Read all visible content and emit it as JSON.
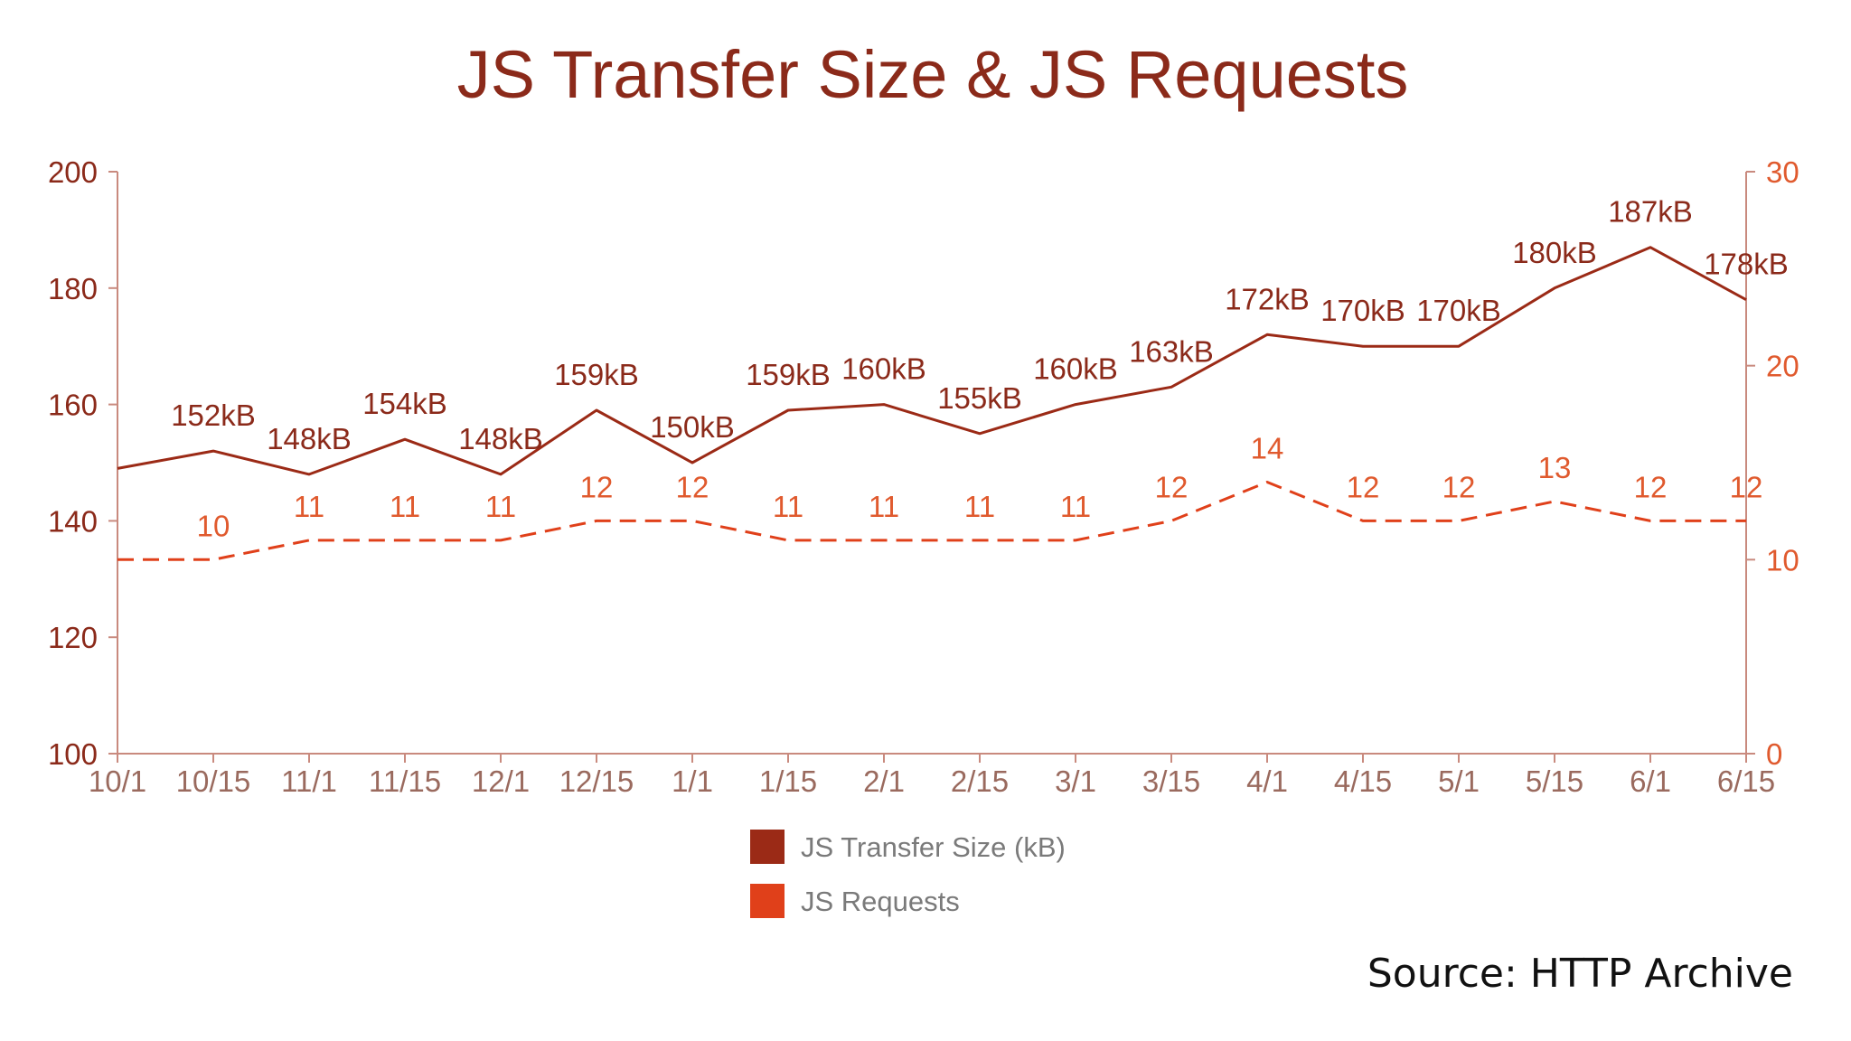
{
  "chart_data": {
    "type": "line",
    "title": "JS Transfer Size & JS Requests",
    "categories": [
      "10/1",
      "10/15",
      "11/1",
      "11/15",
      "12/1",
      "12/15",
      "1/1",
      "1/15",
      "2/1",
      "2/15",
      "3/1",
      "3/15",
      "4/1",
      "4/15",
      "5/1",
      "5/15",
      "6/1",
      "6/15"
    ],
    "y_left": {
      "ylim": [
        100,
        200
      ],
      "ticks": [
        100,
        120,
        140,
        160,
        180,
        200
      ]
    },
    "y_right": {
      "ylim": [
        0,
        30
      ],
      "ticks": [
        0,
        10,
        20,
        30
      ]
    },
    "series": [
      {
        "name": "JS Transfer Size (kB)",
        "axis": "left",
        "style": "solid",
        "color": "#9b2a16",
        "values": [
          149,
          152,
          148,
          154,
          148,
          159,
          150,
          159,
          160,
          155,
          160,
          163,
          172,
          170,
          170,
          180,
          187,
          178
        ],
        "labels": [
          "",
          "152kB",
          "148kB",
          "154kB",
          "148kB",
          "159kB",
          "150kB",
          "159kB",
          "160kB",
          "155kB",
          "160kB",
          "163kB",
          "172kB",
          "170kB",
          "170kB",
          "180kB",
          "187kB",
          "178kB"
        ]
      },
      {
        "name": "JS Requests",
        "axis": "right",
        "style": "dashed",
        "color": "#e0401a",
        "values": [
          10,
          10,
          11,
          11,
          11,
          12,
          12,
          11,
          11,
          11,
          11,
          12,
          14,
          12,
          12,
          13,
          12,
          12
        ],
        "labels": [
          "",
          "10",
          "11",
          "11",
          "11",
          "12",
          "12",
          "11",
          "11",
          "11",
          "11",
          "12",
          "14",
          "12",
          "12",
          "13",
          "12",
          "12"
        ]
      }
    ],
    "grid": false,
    "legend": "bottom-center"
  },
  "source": "Source: HTTP Archive",
  "colors": {
    "axis": "#c98a7e",
    "title": "#8b2a1a",
    "size_line": "#9b2a16",
    "req_line": "#e05a2e",
    "legend_size": "#9b2a16",
    "legend_req": "#e0401a"
  }
}
